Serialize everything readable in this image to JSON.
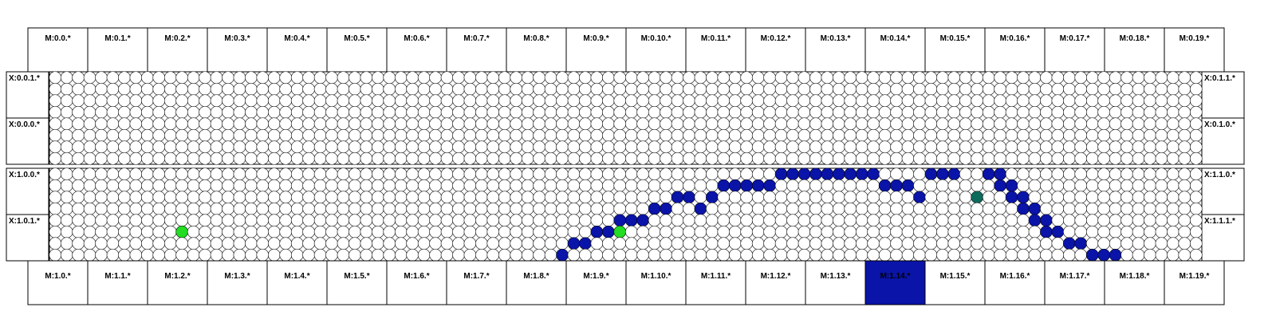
{
  "top_modules": [
    "M:0.0.*",
    "M:0.1.*",
    "M:0.2.*",
    "M:0.3.*",
    "M:0.4.*",
    "M:0.5.*",
    "M:0.6.*",
    "M:0.7.*",
    "M:0.8.*",
    "M:0.9.*",
    "M:0.10.*",
    "M:0.11.*",
    "M:0.12.*",
    "M:0.13.*",
    "M:0.14.*",
    "M:0.15.*",
    "M:0.16.*",
    "M:0.17.*",
    "M:0.18.*",
    "M:0.19.*"
  ],
  "bottom_modules": [
    "M:1.0.*",
    "M:1.1.*",
    "M:1.2.*",
    "M:1.3.*",
    "M:1.4.*",
    "M:1.5.*",
    "M:1.6.*",
    "M:1.7.*",
    "M:1.8.*",
    "M:1.9.*",
    "M:1.10.*",
    "M:1.11.*",
    "M:1.12.*",
    "M:1.13.*",
    "M:1.14.*",
    "M:1.15.*",
    "M:1.16.*",
    "M:1.17.*",
    "M:1.18.*",
    "M:1.19.*"
  ],
  "highlighted_bottom_module": 14,
  "panels": [
    {
      "left_labels": [
        "X:0.0.1.*",
        "X:0.0.0.*"
      ],
      "right_labels": [
        "X:0.1.1.*",
        "X:0.1.0.*"
      ]
    },
    {
      "left_labels": [
        "X:1.0.0.*",
        "X:1.0.1.*"
      ],
      "right_labels": [
        "X:1.1.0.*",
        "X:1.1.1.*"
      ]
    }
  ],
  "grid": {
    "columns": 100,
    "rows_per_panel": 8
  },
  "colors": {
    "track": "#0a14a8",
    "green": "#22dd22",
    "teal": "#0d6b5c",
    "highlight": "#0a14a8",
    "pad_fill": "#ffffff",
    "pad_stroke": "#000000"
  },
  "hits": {
    "panel": 1,
    "track": [
      [
        44,
        7
      ],
      [
        45,
        6
      ],
      [
        46,
        6
      ],
      [
        47,
        5
      ],
      [
        48,
        5
      ],
      [
        49,
        4
      ],
      [
        50,
        4
      ],
      [
        51,
        4
      ],
      [
        52,
        3
      ],
      [
        53,
        3
      ],
      [
        54,
        2
      ],
      [
        55,
        2
      ],
      [
        56,
        3
      ],
      [
        57,
        2
      ],
      [
        58,
        1
      ],
      [
        59,
        1
      ],
      [
        60,
        1
      ],
      [
        61,
        1
      ],
      [
        62,
        1
      ],
      [
        63,
        0
      ],
      [
        64,
        0
      ],
      [
        65,
        0
      ],
      [
        66,
        0
      ],
      [
        67,
        0
      ],
      [
        68,
        0
      ],
      [
        69,
        0
      ],
      [
        70,
        0
      ],
      [
        71,
        0
      ],
      [
        72,
        1
      ],
      [
        73,
        1
      ],
      [
        74,
        1
      ],
      [
        75,
        2
      ],
      [
        76,
        0
      ],
      [
        77,
        0
      ],
      [
        78,
        0
      ],
      [
        81,
        0
      ],
      [
        82,
        0
      ],
      [
        82,
        1
      ],
      [
        83,
        1
      ],
      [
        83,
        2
      ],
      [
        84,
        2
      ],
      [
        84,
        3
      ],
      [
        85,
        3
      ],
      [
        85,
        4
      ],
      [
        86,
        4
      ],
      [
        86,
        5
      ],
      [
        87,
        5
      ],
      [
        88,
        6
      ],
      [
        89,
        6
      ],
      [
        90,
        7
      ],
      [
        91,
        7
      ],
      [
        92,
        7
      ]
    ],
    "green": [
      [
        11,
        5
      ],
      [
        49,
        5
      ]
    ],
    "teal": [
      [
        80,
        2
      ]
    ]
  }
}
